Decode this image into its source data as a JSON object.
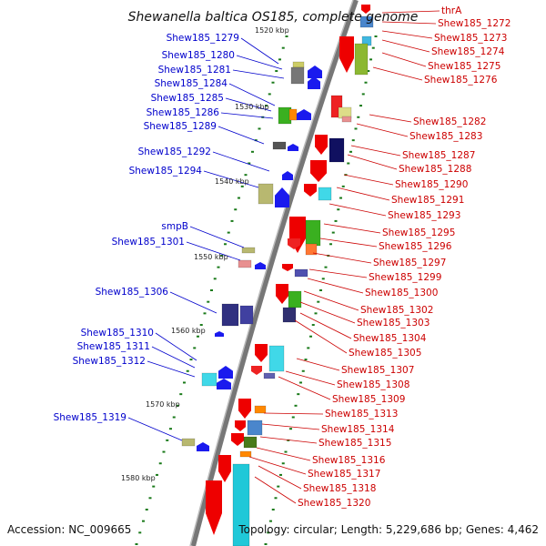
{
  "title": "Shewanella baltica OS185, complete genome",
  "footer": {
    "accession": "Accession: NC_009665",
    "info": "Topology: circular; Length: 5,229,686 bp; Genes: 4,462"
  },
  "colors": {
    "left_label": "#0000cc",
    "right_label": "#cc0000",
    "backbone": "#808080",
    "tick": "#1a7a1a"
  },
  "kbp_ticks": [
    "1520 kbp",
    "1530 kbp",
    "1540 kbp",
    "1550 kbp",
    "1560 kbp",
    "1570 kbp",
    "1580 kbp"
  ],
  "left_labels": [
    "Shew185_1279",
    "Shew185_1280",
    "Shew185_1281",
    "Shew185_1284",
    "Shew185_1285",
    "Shew185_1286",
    "Shew185_1289",
    "Shew185_1292",
    "Shew185_1294",
    "smpB",
    "Shew185_1301",
    "Shew185_1306",
    "Shew185_1310",
    "Shew185_1311",
    "Shew185_1312",
    "Shew185_1319"
  ],
  "right_labels": [
    "thrA",
    "Shew185_1272",
    "Shew185_1273",
    "Shew185_1274",
    "Shew185_1275",
    "Shew185_1276",
    "Shew185_1282",
    "Shew185_1283",
    "Shew185_1287",
    "Shew185_1288",
    "Shew185_1290",
    "Shew185_1291",
    "Shew185_1293",
    "Shew185_1295",
    "Shew185_1296",
    "Shew185_1297",
    "Shew185_1299",
    "Shew185_1300",
    "Shew185_1302",
    "Shew185_1303",
    "Shew185_1304",
    "Shew185_1305",
    "Shew185_1307",
    "Shew185_1308",
    "Shew185_1309",
    "Shew185_1313",
    "Shew185_1314",
    "Shew185_1315",
    "Shew185_1316",
    "Shew185_1317",
    "Shew185_1318",
    "Shew185_1320"
  ]
}
